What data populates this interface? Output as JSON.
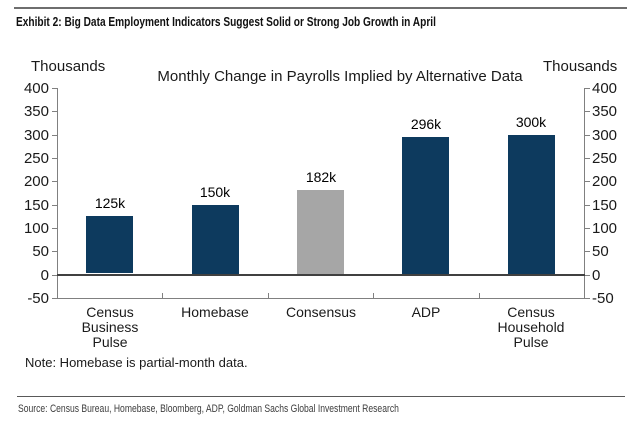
{
  "exhibit": {
    "title": "Exhibit 2: Big Data Employment Indicators Suggest Solid or Strong Job Growth in April"
  },
  "note": "Note: Homebase is partial-month data.",
  "source": "Source: Census Bureau, Homebase, Bloomberg, ADP, Goldman Sachs Global Investment Research",
  "colors": {
    "navy": "#0D3A5E",
    "consensus_gray": "#A6A6A6",
    "axis": "#808080",
    "zero_line": "#404040"
  },
  "chart_data": {
    "type": "bar",
    "title": "Monthly Change in Payrolls Implied by Alternative Data",
    "left_axis_label": "Thousands",
    "right_axis_label": "Thousands",
    "categories": [
      "Census Business Pulse",
      "Homebase",
      "Consensus",
      "ADP",
      "Census Household Pulse"
    ],
    "tick_labels": [
      "Census\nBusiness\nPulse",
      "Homebase",
      "Consensus",
      "ADP",
      "Census\nHousehold\nPulse"
    ],
    "values": [
      125,
      150,
      182,
      296,
      300
    ],
    "data_labels": [
      "125k",
      "150k",
      "182k",
      "296k",
      "300k"
    ],
    "bar_colors": [
      "#0D3A5E",
      "#0D3A5E",
      "#A6A6A6",
      "#0D3A5E",
      "#0D3A5E"
    ],
    "unit": "thousands",
    "ylim": [
      -50,
      400
    ],
    "yticks": [
      400,
      350,
      300,
      250,
      200,
      150,
      100,
      50,
      0,
      -50
    ],
    "grid": false,
    "legend": null,
    "dual_axis": true
  }
}
